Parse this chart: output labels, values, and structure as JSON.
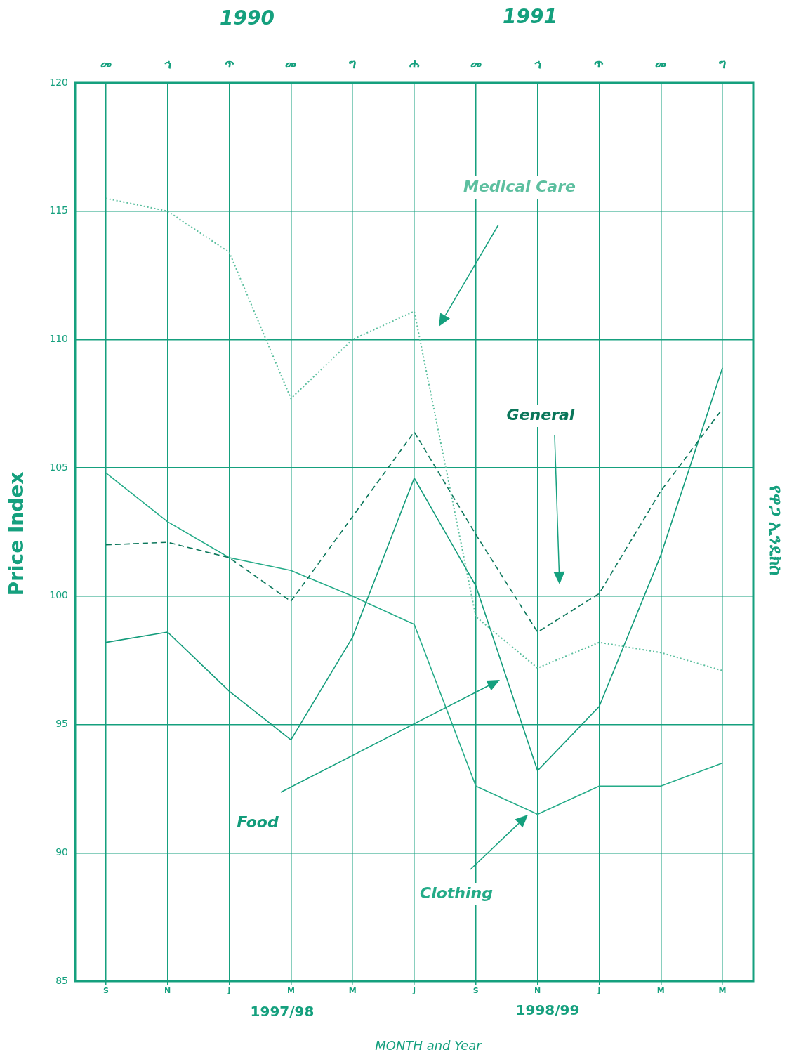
{
  "chart_data": {
    "type": "line",
    "xlabel": "MONTH and Year",
    "ylabel": "Price Index",
    "y2label": "የዋጋ ኢንዴክስ",
    "categories": [
      "S",
      "N",
      "J",
      "M",
      "M",
      "J",
      "S",
      "N",
      "J",
      "M",
      "M"
    ],
    "series": [
      {
        "name": "Medical Care",
        "color": "#5cbf9f",
        "line_style": "dotted",
        "values": [
          115.5,
          115.0,
          113.4,
          107.7,
          110.0,
          111.1,
          99.2,
          97.2,
          98.2,
          97.8,
          97.1
        ]
      },
      {
        "name": "General",
        "color": "#0a765a",
        "line_style": "dashed",
        "values": [
          102.0,
          102.1,
          101.5,
          99.8,
          103.1,
          106.4,
          102.4,
          98.6,
          100.1,
          104.1,
          107.3
        ]
      },
      {
        "name": "Food",
        "color": "#139c7b",
        "line_style": "solid",
        "values": [
          98.2,
          98.6,
          96.3,
          94.4,
          98.4,
          104.6,
          100.4,
          93.2,
          95.7,
          101.6,
          108.9
        ]
      },
      {
        "name": "Clothing",
        "color": "#24ab88",
        "line_style": "solid",
        "values": [
          104.8,
          102.9,
          101.5,
          101.0,
          100.0,
          98.9,
          92.6,
          91.5,
          92.6,
          92.6,
          93.5
        ]
      }
    ],
    "ylim": [
      85,
      120
    ],
    "yticks": [
      85,
      90,
      95,
      100,
      105,
      110,
      115,
      120
    ],
    "grid": true,
    "legend": false,
    "marker": "none",
    "annotations": [
      "1990",
      "1991",
      "1997/98",
      "1998/99",
      "መ",
      "ኅ",
      "ጥ",
      "መ",
      "ግ",
      "ሐ",
      "መ",
      "ኅ",
      "ጥ",
      "መ",
      "ግ"
    ]
  }
}
